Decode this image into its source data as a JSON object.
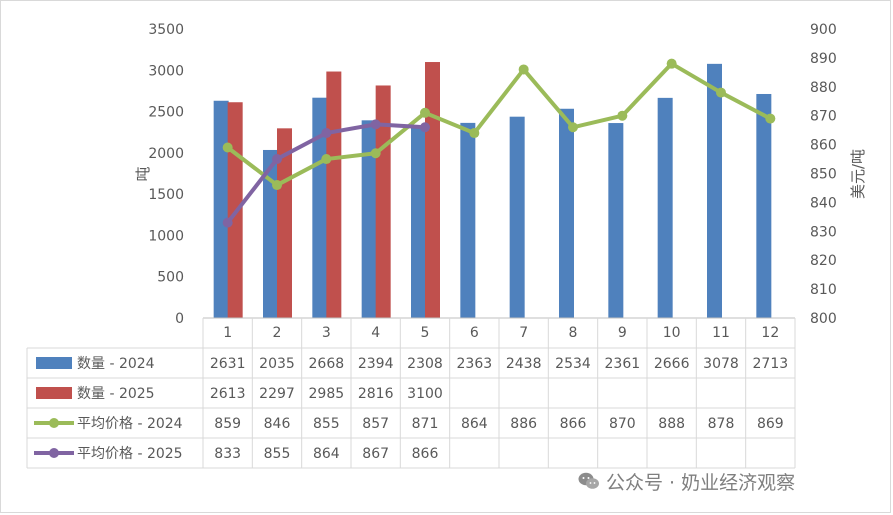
{
  "chart_data": {
    "type": "bar",
    "categories": [
      "1",
      "2",
      "3",
      "4",
      "5",
      "6",
      "7",
      "8",
      "9",
      "10",
      "11",
      "12"
    ],
    "ylabel": "吨",
    "y2label": "美元/吨",
    "ylim": [
      0,
      3500
    ],
    "y2lim": [
      800,
      900
    ],
    "yticks": [
      "0",
      "500",
      "1000",
      "1500",
      "2000",
      "2500",
      "3000",
      "3500"
    ],
    "y2ticks": [
      "800",
      "810",
      "820",
      "830",
      "840",
      "850",
      "860",
      "870",
      "880",
      "890",
      "900"
    ],
    "bar_series": [
      {
        "name": "数量 - 2024",
        "color": "#4f81bd",
        "values": [
          2631,
          2035,
          2668,
          2394,
          2308,
          2363,
          2438,
          2534,
          2361,
          2666,
          3078,
          2713
        ]
      },
      {
        "name": "数量 - 2025",
        "color": "#c0504d",
        "values": [
          2613,
          2297,
          2985,
          2816,
          3100,
          null,
          null,
          null,
          null,
          null,
          null,
          null
        ]
      }
    ],
    "line_series": [
      {
        "name": "平均价格 - 2024",
        "color": "#9bbb59",
        "values": [
          859,
          846,
          855,
          857,
          871,
          864,
          886,
          866,
          870,
          888,
          878,
          869
        ]
      },
      {
        "name": "平均价格 - 2025",
        "color": "#8064a2",
        "values": [
          833,
          855,
          864,
          867,
          866,
          null,
          null,
          null,
          null,
          null,
          null,
          null
        ]
      }
    ],
    "data_table": true,
    "legend": "data-table"
  },
  "watermark": {
    "text": "公众号 · 奶业经济观察",
    "icon": "wechat-icon"
  }
}
